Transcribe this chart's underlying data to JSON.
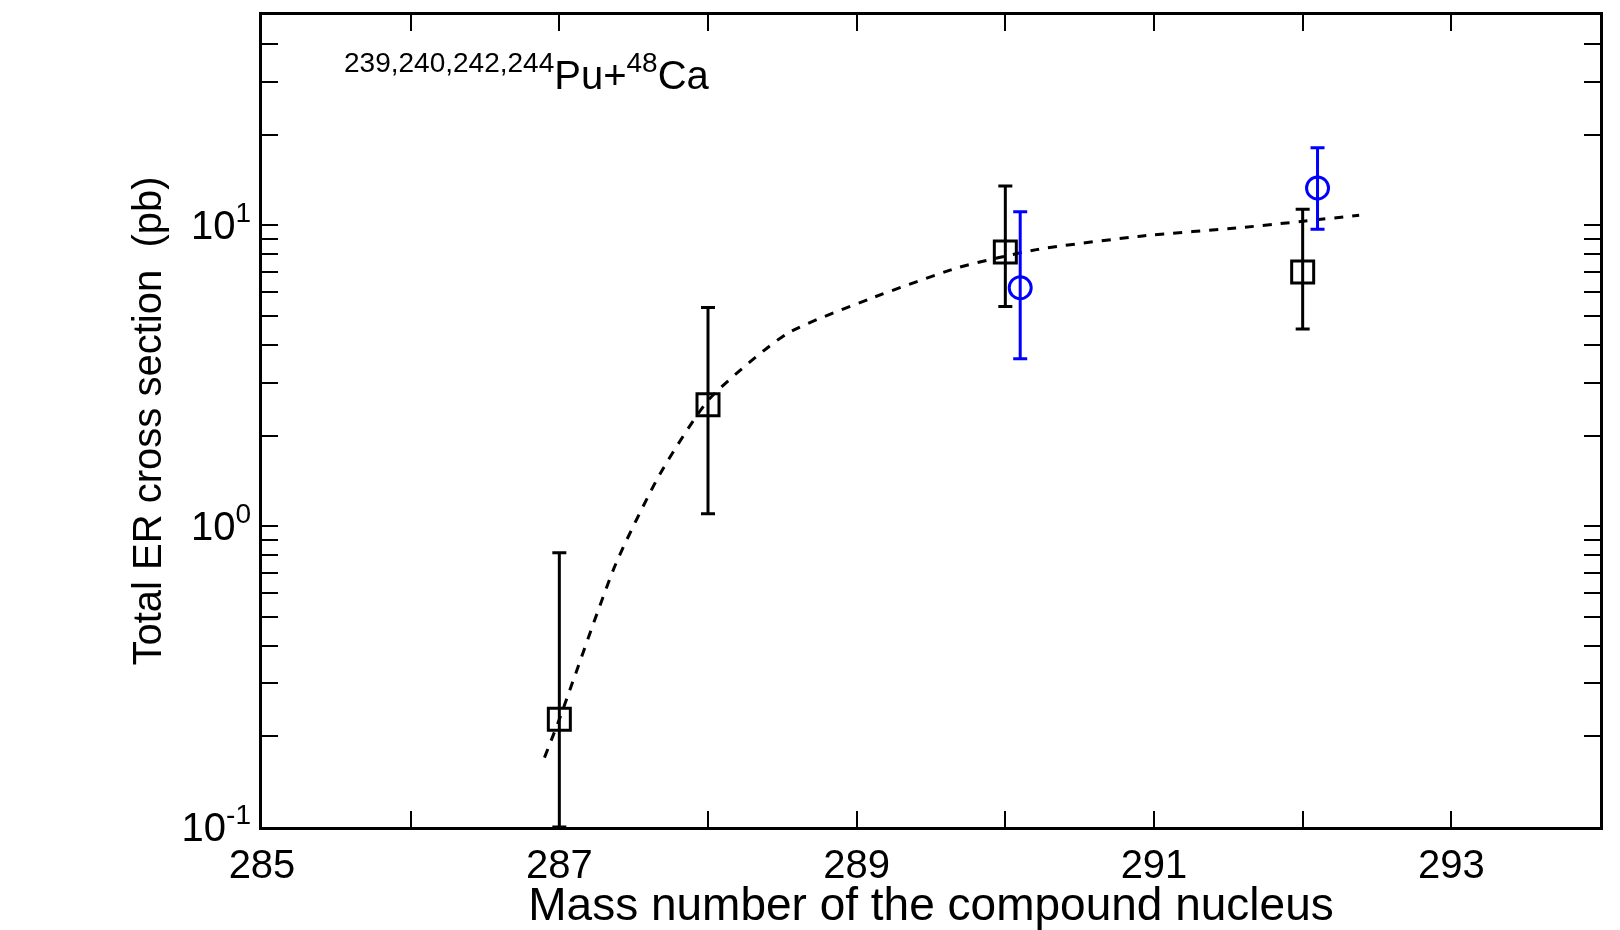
{
  "chart_data": {
    "type": "scatter",
    "xlabel": "Mass number of the compound nucleus",
    "ylabel": "Total ER cross section  (pb)",
    "annotations": [
      "$^{239,240,242,244}$Pu+$^{48}$Ca"
    ],
    "log": "y",
    "xlim": [
      285,
      294
    ],
    "ylim": [
      0.1,
      50
    ],
    "xticks": [
      285,
      {
        "value": 286,
        "label": null
      },
      287,
      {
        "value": 288,
        "label": null
      },
      289,
      {
        "value": 290,
        "label": null
      },
      291,
      {
        "value": 292,
        "label": null
      },
      293
    ],
    "yticks": [
      {
        "value": 0.1,
        "label": "10$^{-1}$"
      },
      {
        "value": 0.2,
        "label": null
      },
      {
        "value": 0.3,
        "label": null
      },
      {
        "value": 0.4,
        "label": null
      },
      {
        "value": 0.5,
        "label": null
      },
      {
        "value": 0.6,
        "label": null
      },
      {
        "value": 0.7,
        "label": null
      },
      {
        "value": 0.8,
        "label": null
      },
      {
        "value": 0.9,
        "label": null
      },
      {
        "value": 1,
        "label": "10$^{0}$"
      },
      {
        "value": 2,
        "label": null
      },
      {
        "value": 3,
        "label": null
      },
      {
        "value": 4,
        "label": null
      },
      {
        "value": 5,
        "label": null
      },
      {
        "value": 6,
        "label": null
      },
      {
        "value": 7,
        "label": null
      },
      {
        "value": 8,
        "label": null
      },
      {
        "value": 9,
        "label": null
      },
      {
        "value": 10,
        "label": "10$^{1}$"
      },
      {
        "value": 20,
        "label": null
      },
      {
        "value": 30,
        "label": null
      },
      {
        "value": 40,
        "label": null
      }
    ],
    "series": [
      {
        "type": "line",
        "color": "#000000",
        "line_style": "dashed",
        "marker": "none",
        "x": [
          286.9,
          287.0,
          287.38,
          287.68,
          288.01,
          288.53,
          289.09,
          289.69,
          290.21,
          290.91,
          291.61,
          292.38
        ],
        "values": [
          0.17,
          0.228,
          0.75,
          1.5,
          2.65,
          4.36,
          5.7,
          7.25,
          8.3,
          9.2,
          9.85,
          10.8
        ]
      },
      {
        "type": "scatter",
        "color": "#000000",
        "marker": "square",
        "x": [
          287,
          288,
          290,
          292
        ],
        "values": [
          0.228,
          2.53,
          8.15,
          7.0
        ],
        "errors": [
          [
            0.1,
            0.815
          ],
          [
            1.1,
            5.33
          ],
          [
            5.37,
            13.5
          ],
          [
            4.52,
            11.3
          ]
        ]
      },
      {
        "type": "scatter",
        "color": "#0000ff",
        "marker": "circle",
        "x": [
          290.1,
          292.1
        ],
        "values": [
          6.2,
          13.3
        ],
        "errors": [
          [
            3.6,
            11.1
          ],
          [
            9.7,
            18.1
          ]
        ]
      }
    ]
  }
}
